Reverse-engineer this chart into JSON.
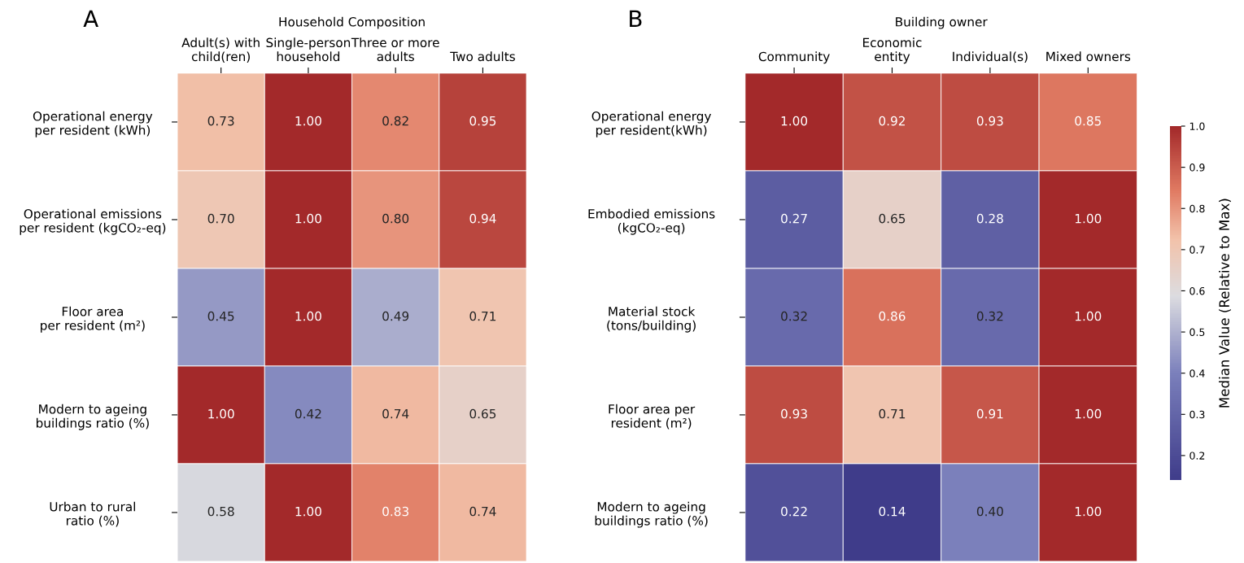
{
  "chart_data": [
    {
      "type": "heatmap",
      "xlabel": "Household Composition",
      "annotations": [
        "A"
      ],
      "categories": [
        "Adult(s) with\nchild(ren)",
        "Single-person\nhousehold",
        "Three or more\nadults",
        "Two adults"
      ],
      "y_categories": [
        "Operational energy\nper resident (kWh)",
        "Operational emissions\nper resident (kgCO₂-eq)",
        "Floor area\nper resident (m²)",
        "Modern to ageing\nbuildings ratio (%)",
        "Urban to rural\nratio (%)"
      ],
      "cells": [
        [
          0.73,
          1.0,
          0.82,
          0.95
        ],
        [
          0.7,
          1.0,
          0.8,
          0.94
        ],
        [
          0.45,
          1.0,
          0.49,
          0.71
        ],
        [
          1.0,
          0.42,
          0.74,
          0.65
        ],
        [
          0.58,
          1.0,
          0.83,
          0.74
        ]
      ],
      "cell_labels": [
        [
          "0.73",
          "1.00",
          "0.82",
          "0.95"
        ],
        [
          "0.70",
          "1.00",
          "0.80",
          "0.94"
        ],
        [
          "0.45",
          "1.00",
          "0.49",
          "0.71"
        ],
        [
          "1.00",
          "0.42",
          "0.74",
          "0.65"
        ],
        [
          "0.58",
          "1.00",
          "0.83",
          "0.74"
        ]
      ]
    },
    {
      "type": "heatmap",
      "xlabel": "Building owner",
      "annotations": [
        "B"
      ],
      "clabel": "Median Value (Relative to Max)",
      "categories": [
        "Community",
        "Economic\nentity",
        "Individual(s)",
        "Mixed owners"
      ],
      "y_categories": [
        "Operational energy\nper resident(kWh)",
        "Embodied emissions\n(kgCO₂-eq)",
        "Material stock\n(tons/building)",
        "Floor area per\nresident (m²)",
        "Modern to ageing\nbuildings ratio (%)"
      ],
      "cells": [
        [
          1.0,
          0.92,
          0.93,
          0.85
        ],
        [
          0.27,
          0.65,
          0.28,
          1.0
        ],
        [
          0.32,
          0.86,
          0.32,
          1.0
        ],
        [
          0.93,
          0.71,
          0.91,
          1.0
        ],
        [
          0.22,
          0.14,
          0.4,
          1.0
        ]
      ],
      "cell_labels": [
        [
          "1.00",
          "0.92",
          "0.93",
          "0.85"
        ],
        [
          "0.27",
          "0.65",
          "0.28",
          "1.00"
        ],
        [
          "0.32",
          "0.86",
          "0.32",
          "1.00"
        ],
        [
          "0.93",
          "0.71",
          "0.91",
          "1.00"
        ],
        [
          "0.22",
          "0.14",
          "0.40",
          "1.00"
        ]
      ],
      "clim": [
        0.14,
        1.0
      ],
      "cticks": [
        0.2,
        0.3,
        0.4,
        0.5,
        0.6,
        0.7,
        0.8,
        0.9,
        {
          "value": 1,
          "label": "1.0"
        }
      ]
    }
  ]
}
